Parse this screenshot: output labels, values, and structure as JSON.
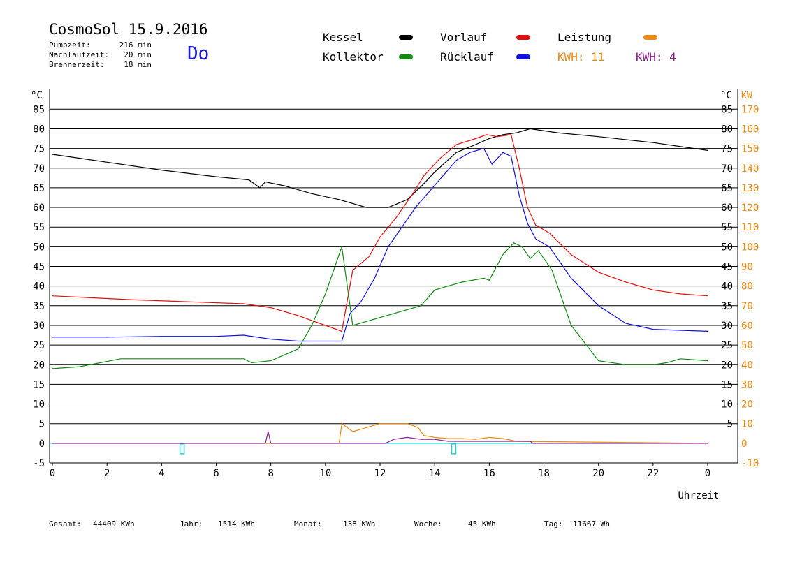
{
  "header": {
    "title": "CosmoSol 15.9.2016",
    "day": "Do",
    "stats": [
      {
        "label": "Pumpzeit:",
        "value": "216 min"
      },
      {
        "label": "Nachlaufzeit:",
        "value": "20 min"
      },
      {
        "label": "Brennerzeit:",
        "value": "18 min"
      }
    ]
  },
  "legend": {
    "kessel": {
      "label": "Kessel",
      "color": "#000000"
    },
    "vorlauf": {
      "label": "Vorlauf",
      "color": "#e01010"
    },
    "leistung": {
      "label": "Leistung",
      "color": "#f08a10"
    },
    "kollektor": {
      "label": "Kollektor",
      "color": "#108a10"
    },
    "ruecklauf": {
      "label": "Rücklauf",
      "color": "#1010e0"
    },
    "kwh1": {
      "label": "KWH: 11",
      "color": "#f08a10"
    },
    "kwh2": {
      "label": "KWH: 4",
      "color": "#8a1a8a"
    }
  },
  "footer": {
    "gesamt_label": "Gesamt:",
    "gesamt_value": "44409 KWh",
    "jahr_label": "Jahr:",
    "jahr_value": "1514 KWh",
    "monat_label": "Monat:",
    "monat_value": "138 KWh",
    "woche_label": "Woche:",
    "woche_value": "45 KWh",
    "tag_label": "Tag:",
    "tag_value": "11667 Wh"
  },
  "chart_data": {
    "type": "line",
    "xlabel": "Uhrzeit",
    "ylabel_left": "°C",
    "ylabel_right_1": "°C",
    "ylabel_right_2": "KW",
    "xlim": [
      0,
      24
    ],
    "ylim": [
      -5,
      90
    ],
    "x_ticks": [
      "0",
      "2",
      "4",
      "6",
      "8",
      "10",
      "12",
      "14",
      "16",
      "18",
      "20",
      "22",
      "0"
    ],
    "y_ticks_left": [
      "85",
      "80",
      "75",
      "70",
      "65",
      "60",
      "55",
      "50",
      "45",
      "40",
      "35",
      "30",
      "25",
      "20",
      "15",
      "10",
      "5",
      "0",
      "-5"
    ],
    "y_ticks_right": [
      "85",
      "80",
      "75",
      "70",
      "65",
      "60",
      "55",
      "50",
      "45",
      "40",
      "35",
      "30",
      "25",
      "20",
      "15",
      "10",
      "5"
    ],
    "kw_ticks": [
      "170",
      "160",
      "150",
      "140",
      "130",
      "120",
      "110",
      "100",
      "90",
      "80",
      "70",
      "60",
      "50",
      "40",
      "30",
      "20",
      "10",
      "0",
      "-10"
    ],
    "series": [
      {
        "name": "Kessel",
        "color": "#000000",
        "x": [
          0,
          2,
          4,
          6,
          7.2,
          7.6,
          7.8,
          8.5,
          9.5,
          10.5,
          11.5,
          12.3,
          13,
          13.6,
          14,
          14.8,
          15.5,
          16,
          16.5,
          17,
          17.5,
          18.5,
          20,
          22,
          24
        ],
        "y": [
          73.5,
          71.5,
          69.5,
          67.8,
          67,
          65,
          66.5,
          65.5,
          63.5,
          62,
          60,
          60,
          62,
          66,
          69,
          74,
          76,
          77.5,
          78.5,
          79,
          80,
          79,
          78,
          76.5,
          74.5
        ]
      },
      {
        "name": "Vorlauf",
        "color": "#e01010",
        "x": [
          0,
          3,
          5,
          7,
          8,
          9,
          10,
          10.6,
          11,
          11.6,
          12,
          12.6,
          13.2,
          13.6,
          14.2,
          14.8,
          15.5,
          15.9,
          16.3,
          16.8,
          17.1,
          17.4,
          17.7,
          18.2,
          19,
          20,
          21,
          22,
          23,
          24
        ],
        "y": [
          37.5,
          36.5,
          36,
          35.5,
          34.5,
          32.5,
          30,
          28.5,
          44,
          47.5,
          52.5,
          57.5,
          63.5,
          68,
          72.5,
          76,
          77.5,
          78.5,
          78,
          78.5,
          70,
          60,
          55.5,
          53.5,
          48,
          43.5,
          41,
          39,
          38,
          37.5
        ]
      },
      {
        "name": "Rücklauf",
        "color": "#1010e0",
        "x": [
          0,
          2,
          4,
          6,
          7,
          8,
          9,
          10,
          10.6,
          10.9,
          11.3,
          11.8,
          12.3,
          12.8,
          13.3,
          13.8,
          14.3,
          14.8,
          15.3,
          15.8,
          16.1,
          16.5,
          16.8,
          17.1,
          17.4,
          17.7,
          18.2,
          19,
          20,
          21,
          22,
          24
        ],
        "y": [
          27,
          27,
          27.2,
          27.2,
          27.5,
          26.5,
          26,
          26,
          26,
          33,
          36,
          42,
          50,
          55,
          60,
          64,
          68,
          72,
          74,
          75,
          71,
          74,
          73,
          63,
          56,
          52,
          50,
          42,
          35,
          30.5,
          29,
          28.5
        ]
      },
      {
        "name": "Kollektor",
        "color": "#108a10",
        "x": [
          0,
          1,
          2.5,
          4,
          5,
          7,
          7.3,
          8,
          9,
          9.5,
          10,
          10.5,
          10.6,
          11,
          11.5,
          12,
          12.5,
          13,
          13.5,
          14,
          14.5,
          15,
          15.8,
          16,
          16.5,
          16.9,
          17.2,
          17.5,
          17.8,
          18.3,
          19,
          20,
          21,
          22,
          22.5,
          23,
          24
        ],
        "y": [
          19,
          19.5,
          21.5,
          21.5,
          21.5,
          21.5,
          20.5,
          21,
          24,
          30,
          38,
          48,
          50,
          30,
          31,
          32,
          33,
          34,
          35,
          39,
          40,
          41,
          42,
          41.5,
          48,
          51,
          50,
          47,
          49,
          44,
          30,
          21,
          20,
          20,
          20.5,
          21.5,
          21
        ]
      },
      {
        "name": "Leistung",
        "color": "#f08a10",
        "x": [
          0,
          10.5,
          10.6,
          11,
          11.5,
          12,
          12.5,
          13,
          13.4,
          13.6,
          14,
          14.5,
          15,
          15.5,
          16,
          16.5,
          17,
          24
        ],
        "y": [
          0,
          0,
          5,
          3,
          4,
          5,
          5,
          5,
          4,
          2,
          1.5,
          1.2,
          1.2,
          1,
          1.5,
          1.2,
          0.5,
          0
        ]
      },
      {
        "name": "KWH: 4",
        "color": "#8a1a8a",
        "x": [
          0,
          7.8,
          7.9,
          8,
          12.2,
          12.5,
          13,
          13.5,
          14,
          14.5,
          15,
          15.5,
          17,
          17.5,
          17.6,
          24
        ],
        "y": [
          0,
          0,
          3,
          0,
          0,
          1,
          1.5,
          1,
          1,
          0.5,
          0.5,
          0.5,
          0.5,
          0.5,
          0,
          0
        ]
      }
    ],
    "cyan_baseline": {
      "color": "#30d0d0",
      "y": 0,
      "markers_x": [
        4.75,
        14.7
      ]
    }
  }
}
